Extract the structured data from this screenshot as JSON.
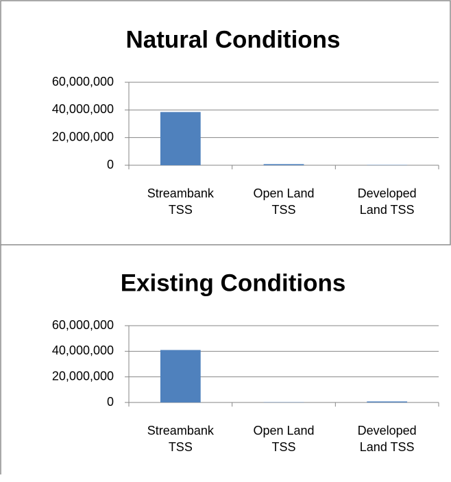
{
  "chart_data": [
    {
      "type": "bar",
      "title": "Natural Conditions",
      "categories": [
        "Streambank TSS",
        "Open Land TSS",
        "Developed Land TSS"
      ],
      "values": [
        38500000,
        800000,
        200000
      ],
      "color": "#4f81bd",
      "ylim": [
        0,
        60000000
      ],
      "yticks": [
        0,
        {
          "value": 20000000,
          "label": "20,000,000"
        },
        {
          "value": 40000000,
          "label": "40,000,000"
        },
        {
          "value": 60000000,
          "label": "60,000,000"
        }
      ],
      "grid": true
    },
    {
      "type": "bar",
      "title": "Existing Conditions",
      "categories": [
        "Streambank TSS",
        "Open Land TSS",
        "Developed Land TSS"
      ],
      "values": [
        41000000,
        200000,
        800000
      ],
      "color": "#4f81bd",
      "ylim": [
        0,
        60000000
      ],
      "yticks": [
        0,
        {
          "value": 20000000,
          "label": "20,000,000"
        },
        {
          "value": 40000000,
          "label": "40,000,000"
        },
        {
          "value": 60000000,
          "label": "60,000,000"
        }
      ],
      "grid": true
    }
  ]
}
